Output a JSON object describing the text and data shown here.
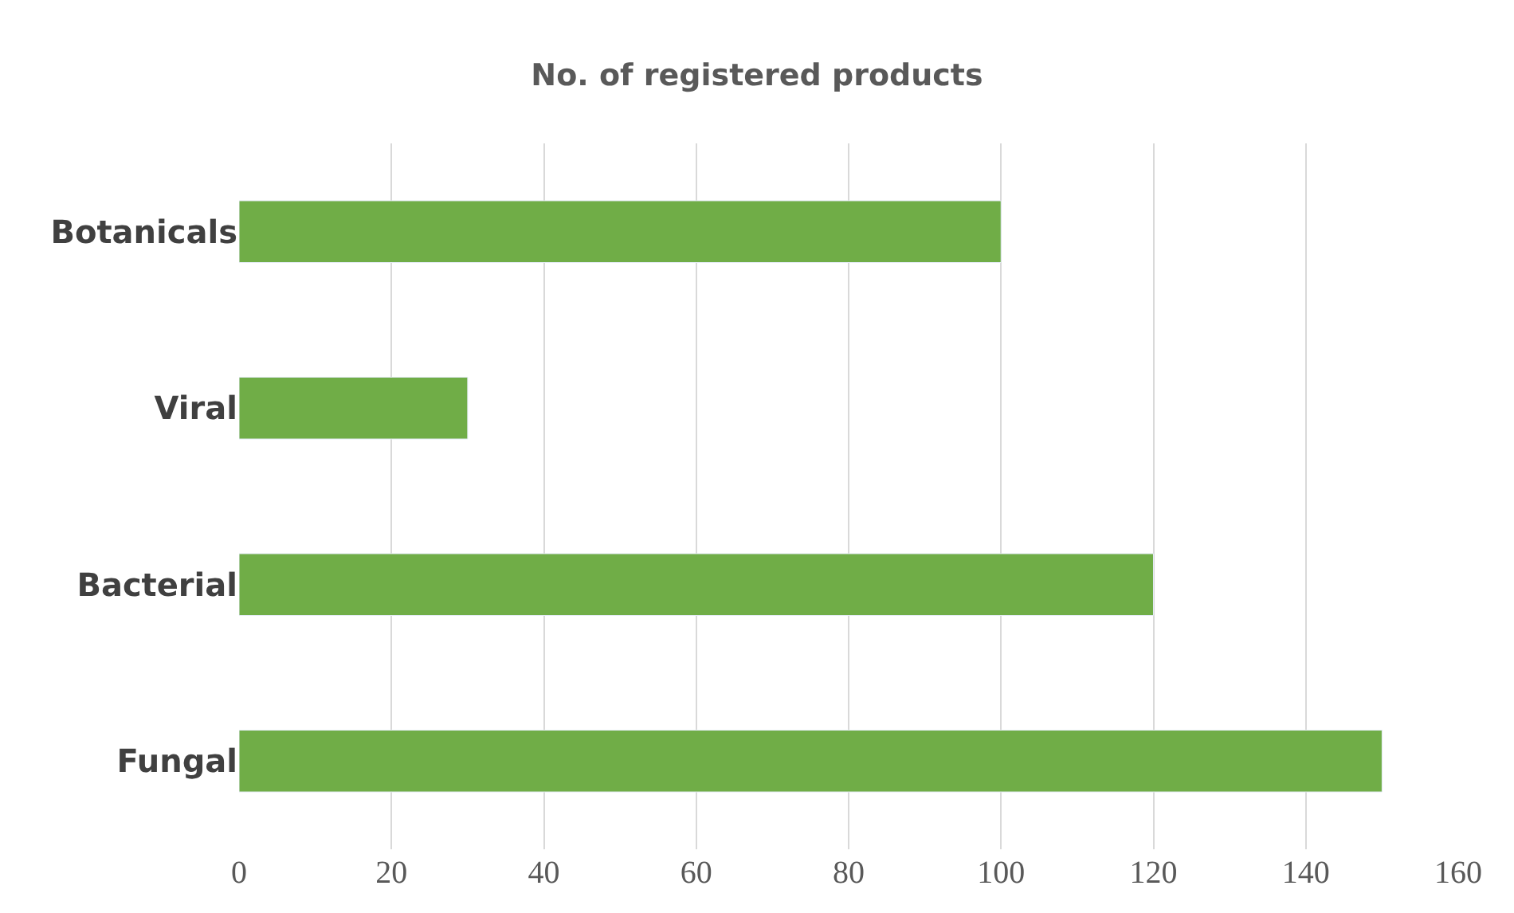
{
  "chart_data": {
    "type": "bar",
    "orientation": "horizontal",
    "title": "No. of registered products",
    "categories": [
      "Botanicals",
      "Viral",
      "Bacterial",
      "Fungal"
    ],
    "values": [
      100,
      30,
      120,
      150
    ],
    "color": "#70ad47",
    "xlim": [
      0,
      160
    ],
    "xticks": [
      0,
      20,
      40,
      60,
      80,
      100,
      120,
      140,
      160
    ],
    "grid": "x"
  }
}
